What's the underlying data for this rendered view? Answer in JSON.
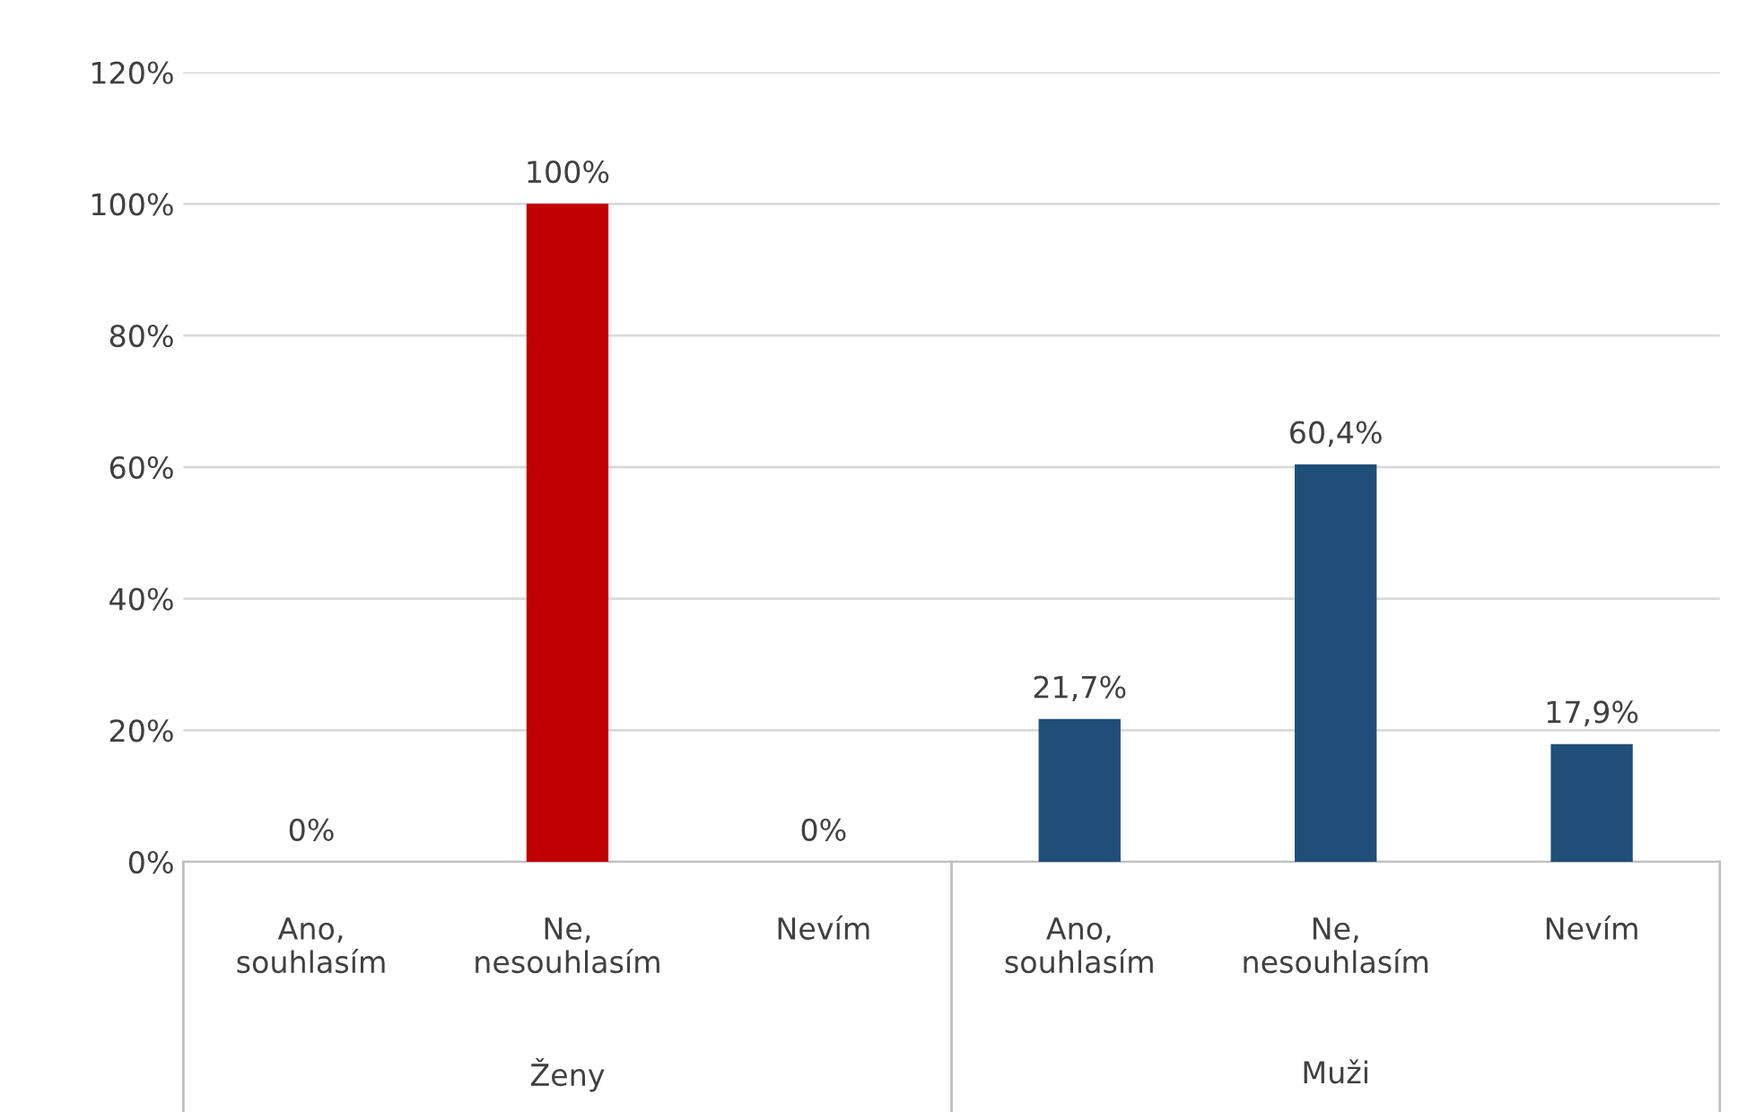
{
  "chart_data": {
    "type": "bar",
    "categories": [
      "Ano,\nsouhlasím",
      "Ne,\nnesouhlasím",
      "Nevím",
      "Ano,\nsouhlasím",
      "Ne,\nnesouhlasím",
      "Nevím"
    ],
    "values": [
      0,
      100,
      0,
      21.7,
      60.4,
      17.9
    ],
    "value_labels": [
      "0%",
      "100%",
      "0%",
      "21,7%",
      "60,4%",
      "17,9%"
    ],
    "colors": [
      "#c00000",
      "#c00000",
      "#c00000",
      "#1f4e79",
      "#1f4e79",
      "#1f4e79"
    ],
    "annotations": [
      "Ženy",
      "Muži"
    ],
    "ylim": [
      0,
      120
    ],
    "yticks": [
      {
        "value": 0,
        "label": "0%"
      },
      {
        "value": 20,
        "label": "20%"
      },
      {
        "value": 40,
        "label": "40%"
      },
      {
        "value": 60,
        "label": "60%"
      },
      {
        "value": 80,
        "label": "80%"
      },
      {
        "value": 100,
        "label": "100%"
      },
      {
        "value": 120,
        "label": "120%"
      }
    ],
    "grid": "y"
  }
}
